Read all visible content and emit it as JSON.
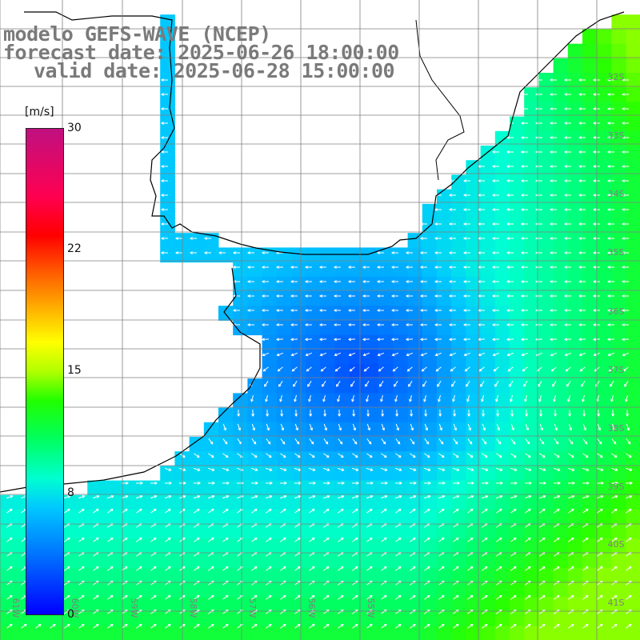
{
  "title": {
    "line1": "modelo GEFS-WAVE (NCEP)",
    "line2": "forecast date: 2025-06-26 18:00:00",
    "line3": "valid date: 2025-06-28 15:00:00"
  },
  "colorbar": {
    "unit": "[m/s]",
    "ticks": [
      "30",
      "22",
      "15",
      "8",
      "0"
    ],
    "tick_values": [
      30,
      22,
      15,
      8,
      0
    ],
    "min": 0,
    "max": 30
  },
  "latitude_labels": [
    "32S",
    "33S",
    "34S",
    "35S",
    "36S",
    "37S",
    "38S",
    "39S",
    "40S",
    "41S"
  ],
  "longitude_labels": [
    "61W",
    "60W",
    "59W",
    "58W",
    "57W",
    "56W",
    "55W"
  ],
  "colors": {
    "land": "#ffffff",
    "coastline": "#000000",
    "grid": "#7f7f7f",
    "arrow": "#ffffff",
    "title": "#7a7a7a"
  }
}
